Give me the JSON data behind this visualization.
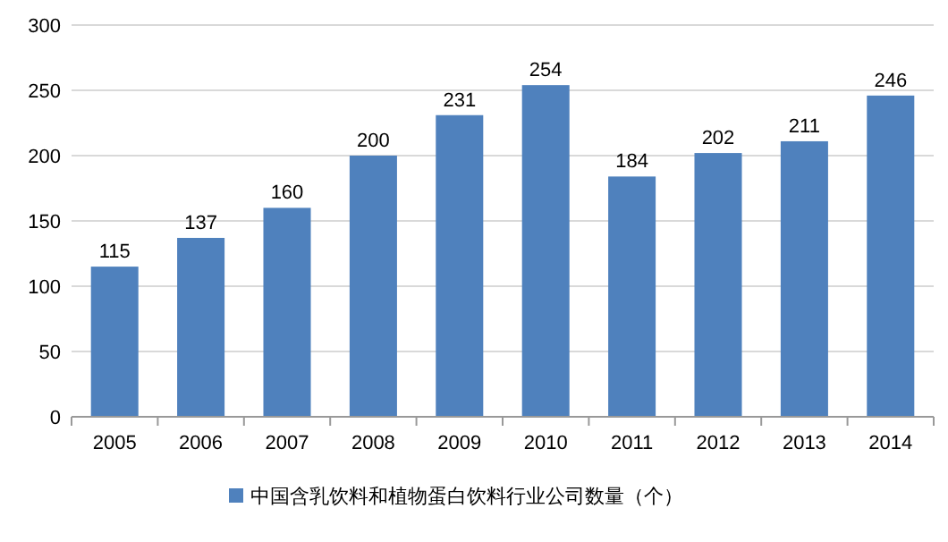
{
  "chart_data": {
    "type": "bar",
    "categories": [
      "2005",
      "2006",
      "2007",
      "2008",
      "2009",
      "2010",
      "2011",
      "2012",
      "2013",
      "2014"
    ],
    "series": [
      {
        "name": "中国含乳饮料和植物蛋白饮料行业公司数量（个）",
        "color": "#4f81bd",
        "values": [
          115,
          137,
          160,
          200,
          231,
          254,
          184,
          202,
          211,
          246
        ]
      }
    ],
    "ylim": [
      0,
      300
    ],
    "yticks": [
      0,
      50,
      100,
      150,
      200,
      250,
      300
    ],
    "grid": "y",
    "legend": "bottom",
    "data_labels": true
  }
}
